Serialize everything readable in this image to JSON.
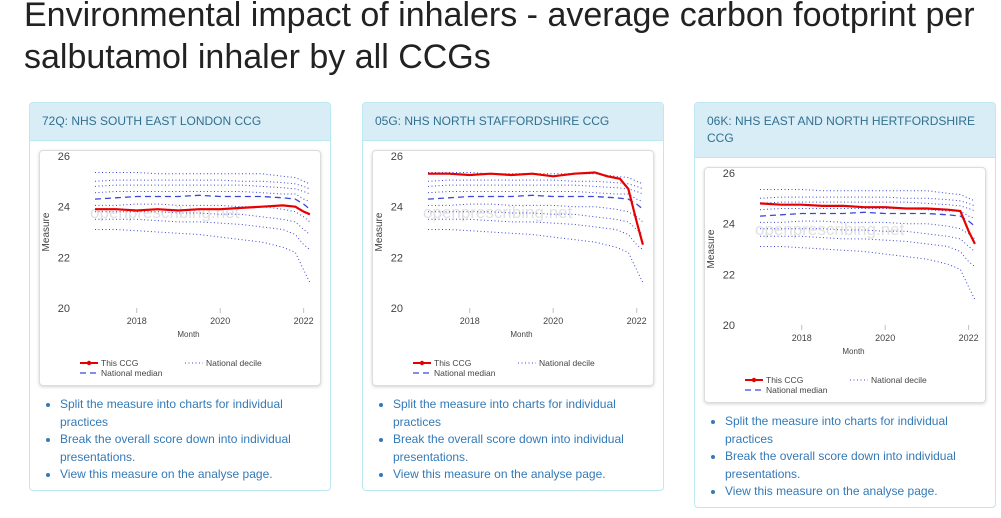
{
  "page": {
    "title": "Environmental impact of inhalers - average carbon footprint per salbutamol inhaler by all CCGs"
  },
  "links": [
    "Split the measure into charts for individual practices",
    "Break the overall score down into individual presentations.",
    "View this measure on the analyse page."
  ],
  "colors": {
    "this_ccg": "#e60000",
    "national_median": "#3a47d6",
    "national_decile": "#3a47d6",
    "panel_heading_bg": "#d9edf7",
    "link": "#337ab7"
  },
  "panels": [
    {
      "heading": "72Q: NHS SOUTH EAST LONDON CCG",
      "chart_data": {
        "type": "line",
        "ylabel": "Measure",
        "xlabel": "Month",
        "ylim": [
          20,
          26
        ],
        "yticks": [
          "20",
          "22",
          "24",
          "26"
        ],
        "xticks": [
          "2018",
          "2020",
          "2022"
        ],
        "watermark": "openprescribing.net",
        "legend": [
          "This CCG",
          "National decile",
          "National median"
        ],
        "series": [
          {
            "name": "This CCG",
            "x": [
              2017.0,
              2017.5,
              2018.0,
              2018.5,
              2019.0,
              2019.5,
              2020.0,
              2020.5,
              2021.0,
              2021.5,
              2021.8,
              2022.0,
              2022.15
            ],
            "values": [
              23.9,
              23.9,
              23.85,
              23.9,
              23.85,
              23.9,
              23.9,
              23.95,
              24.0,
              24.05,
              24.0,
              23.8,
              23.7
            ]
          }
        ]
      }
    },
    {
      "heading": "05G: NHS NORTH STAFFORDSHIRE CCG",
      "chart_data": {
        "type": "line",
        "ylabel": "Measure",
        "xlabel": "Month",
        "ylim": [
          20,
          26
        ],
        "yticks": [
          "20",
          "22",
          "24",
          "26"
        ],
        "xticks": [
          "2018",
          "2020",
          "2022"
        ],
        "watermark": "openprescribing.net",
        "legend": [
          "This CCG",
          "National decile",
          "National median"
        ],
        "series": [
          {
            "name": "This CCG",
            "x": [
              2017.0,
              2017.5,
              2018.0,
              2018.5,
              2019.0,
              2019.5,
              2020.0,
              2020.5,
              2021.0,
              2021.3,
              2021.6,
              2021.8,
              2022.0,
              2022.15
            ],
            "values": [
              25.3,
              25.3,
              25.25,
              25.3,
              25.25,
              25.3,
              25.2,
              25.3,
              25.35,
              25.2,
              25.1,
              24.7,
              23.4,
              22.5
            ]
          }
        ]
      }
    },
    {
      "heading": "06K: NHS EAST AND NORTH HERTFORDSHIRE CCG",
      "chart_data": {
        "type": "line",
        "ylabel": "Measure",
        "xlabel": "Month",
        "ylim": [
          20,
          26
        ],
        "yticks": [
          "20",
          "22",
          "24",
          "26"
        ],
        "xticks": [
          "2018",
          "2020",
          "2022"
        ],
        "watermark": "openprescribing.net",
        "legend": [
          "This CCG",
          "National decile",
          "National median"
        ],
        "series": [
          {
            "name": "This CCG",
            "x": [
              2017.0,
              2017.5,
              2018.0,
              2018.5,
              2019.0,
              2019.5,
              2020.0,
              2020.5,
              2021.0,
              2021.5,
              2021.8,
              2022.0,
              2022.15
            ],
            "values": [
              24.8,
              24.75,
              24.75,
              24.7,
              24.7,
              24.65,
              24.65,
              24.6,
              24.6,
              24.55,
              24.5,
              23.7,
              23.2
            ]
          }
        ]
      }
    }
  ],
  "national": {
    "x": [
      2017.0,
      2017.5,
      2018.0,
      2018.5,
      2019.0,
      2019.5,
      2020.0,
      2020.5,
      2021.0,
      2021.5,
      2021.8,
      2022.0,
      2022.15
    ],
    "median": [
      24.3,
      24.35,
      24.4,
      24.4,
      24.4,
      24.45,
      24.4,
      24.4,
      24.4,
      24.35,
      24.3,
      24.1,
      23.9
    ],
    "deciles": [
      [
        23.1,
        23.1,
        23.05,
        23.0,
        22.95,
        22.9,
        22.8,
        22.7,
        22.6,
        22.4,
        22.2,
        21.5,
        21.0
      ],
      [
        23.5,
        23.5,
        23.5,
        23.45,
        23.4,
        23.4,
        23.35,
        23.3,
        23.2,
        23.1,
        22.9,
        22.5,
        22.3
      ],
      [
        23.8,
        23.8,
        23.8,
        23.8,
        23.75,
        23.75,
        23.7,
        23.7,
        23.6,
        23.5,
        23.4,
        23.1,
        22.9
      ],
      [
        24.05,
        24.05,
        24.1,
        24.1,
        24.05,
        24.05,
        24.05,
        24.0,
        24.0,
        23.9,
        23.8,
        23.6,
        23.4
      ],
      [
        24.55,
        24.6,
        24.6,
        24.6,
        24.6,
        24.6,
        24.6,
        24.6,
        24.55,
        24.5,
        24.5,
        24.3,
        24.2
      ],
      [
        24.8,
        24.85,
        24.85,
        24.85,
        24.85,
        24.85,
        24.85,
        24.85,
        24.8,
        24.75,
        24.7,
        24.6,
        24.5
      ],
      [
        25.0,
        25.05,
        25.05,
        25.05,
        25.05,
        25.05,
        25.05,
        25.0,
        25.0,
        24.95,
        24.9,
        24.8,
        24.7
      ],
      [
        25.35,
        25.35,
        25.35,
        25.3,
        25.3,
        25.3,
        25.3,
        25.3,
        25.3,
        25.2,
        25.15,
        25.0,
        24.9
      ]
    ]
  }
}
